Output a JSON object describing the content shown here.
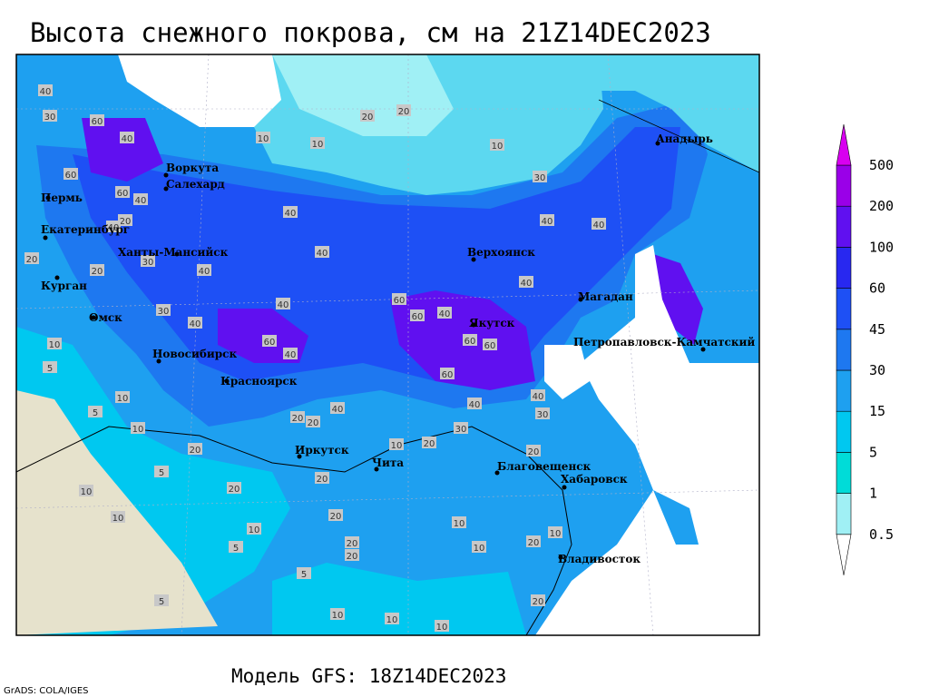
{
  "title": "Высота снежного покрова, см на 21Z14DEC2023",
  "footer": "Модель GFS: 18Z14DEC2023",
  "credit": "GrADS: COLA/IGES",
  "legend": {
    "levels": [
      0.5,
      1,
      5,
      15,
      30,
      45,
      60,
      100,
      200,
      500
    ],
    "colors": [
      "#ffffff",
      "#a0f0f5",
      "#00dcd8",
      "#00c8f0",
      "#1ea0f0",
      "#1e78f0",
      "#1e50f5",
      "#2828f0",
      "#6010f0",
      "#9a00e8",
      "#d800f0"
    ]
  },
  "cities": [
    "Воркута",
    "Салехард",
    "Пермь",
    "Екатеринбург",
    "Ханты-Мансийск",
    "Курган",
    "Омск",
    "Новосибирск",
    "Красноярск",
    "Иркутск",
    "Чита",
    "Благовещенск",
    "Хабаровск",
    "Владивосток",
    "Якутск",
    "Верхоянск",
    "Магадан",
    "Анадырь",
    "Петропавловск-Камчатский"
  ],
  "contour_labels": [
    40,
    30,
    60,
    40,
    60,
    60,
    40,
    20,
    40,
    20,
    30,
    20,
    40,
    30,
    40,
    60,
    40,
    40,
    40,
    40,
    20,
    20,
    10,
    10,
    10,
    30,
    40,
    40,
    40,
    60,
    60,
    40,
    60,
    60,
    60,
    40,
    40,
    30,
    40,
    20,
    20,
    30,
    10,
    20,
    20,
    20,
    20,
    10,
    5,
    10,
    5,
    10,
    20,
    5,
    10,
    10,
    10,
    20,
    5,
    20,
    5,
    10,
    10,
    20,
    10,
    20,
    10,
    10,
    10,
    5,
    20
  ]
}
